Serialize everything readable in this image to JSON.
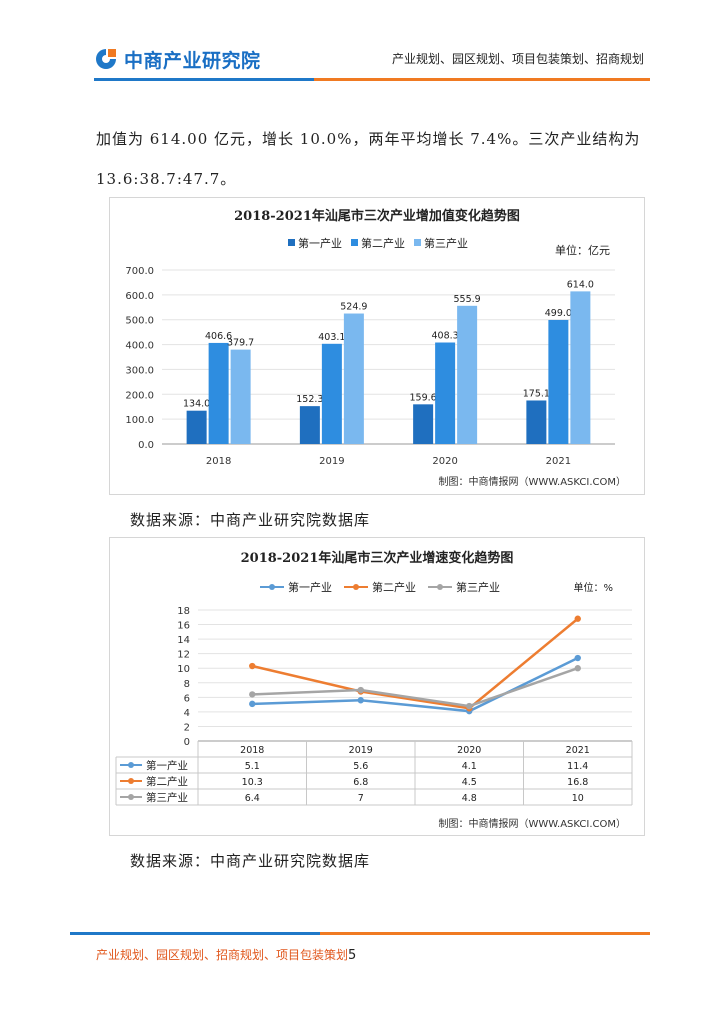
{
  "header": {
    "logo_text": "中商产业研究院",
    "tagline": "产业规划、园区规划、项目包装策划、招商规划"
  },
  "body": {
    "para1": "加值为 614.00 亿元，增长 10.0%，两年平均增长 7.4%。三次产业结构为",
    "para2": "13.6:38.7:47.7。",
    "source1": "数据来源：中商产业研究院数据库",
    "source2": "数据来源：中商产业研究院数据库"
  },
  "chart_data": [
    {
      "type": "bar",
      "title": "2018-2021年汕尾市三次产业增加值变化趋势图",
      "unit_label": "单位：亿元",
      "credit": "制图：中商情报网（WWW.ASKCI.COM）",
      "categories": [
        "2018",
        "2019",
        "2020",
        "2021"
      ],
      "ylim": [
        0,
        700
      ],
      "yticks": [
        "0.0",
        "100.0",
        "200.0",
        "300.0",
        "400.0",
        "500.0",
        "600.0",
        "700.0"
      ],
      "legend_position": "top",
      "series": [
        {
          "name": "第一产业",
          "values": [
            134.0,
            152.3,
            159.6,
            175.1
          ],
          "labels": [
            "134.0",
            "152.3",
            "159.6",
            "175.1"
          ],
          "color": "#1f6fbf"
        },
        {
          "name": "第二产业",
          "values": [
            406.6,
            403.1,
            408.3,
            499.0
          ],
          "labels": [
            "406.6",
            "403.1",
            "408.3",
            "499.0"
          ],
          "color": "#2e8de0"
        },
        {
          "name": "第三产业",
          "values": [
            379.7,
            524.9,
            555.9,
            614.0
          ],
          "labels": [
            "379.7",
            "524.9",
            "555.9",
            "614.0"
          ],
          "color": "#7ab8ef"
        }
      ]
    },
    {
      "type": "line",
      "title": "2018-2021年汕尾市三次产业增速变化趋势图",
      "unit_label": "单位：%",
      "credit": "制图：中商情报网（WWW.ASKCI.COM）",
      "categories": [
        "2018",
        "2019",
        "2020",
        "2021"
      ],
      "ylim": [
        0,
        18
      ],
      "yticks": [
        "0",
        "2",
        "4",
        "6",
        "8",
        "10",
        "12",
        "14",
        "16",
        "18"
      ],
      "legend_position": "top",
      "series": [
        {
          "name": "第一产业",
          "values": [
            5.1,
            5.6,
            4.1,
            11.4
          ],
          "labels": [
            "5.1",
            "5.6",
            "4.1",
            "11.4"
          ],
          "color": "#5b9bd5"
        },
        {
          "name": "第二产业",
          "values": [
            10.3,
            6.8,
            4.5,
            16.8
          ],
          "labels": [
            "10.3",
            "6.8",
            "4.5",
            "16.8"
          ],
          "color": "#ed7d31"
        },
        {
          "name": "第三产业",
          "values": [
            6.4,
            7,
            4.8,
            10
          ],
          "labels": [
            "6.4",
            "7",
            "4.8",
            "10"
          ],
          "color": "#a5a5a5"
        }
      ]
    }
  ],
  "footer": {
    "text": "产业规划、园区规划、招商规划、项目包装策划",
    "page_number": "5"
  }
}
